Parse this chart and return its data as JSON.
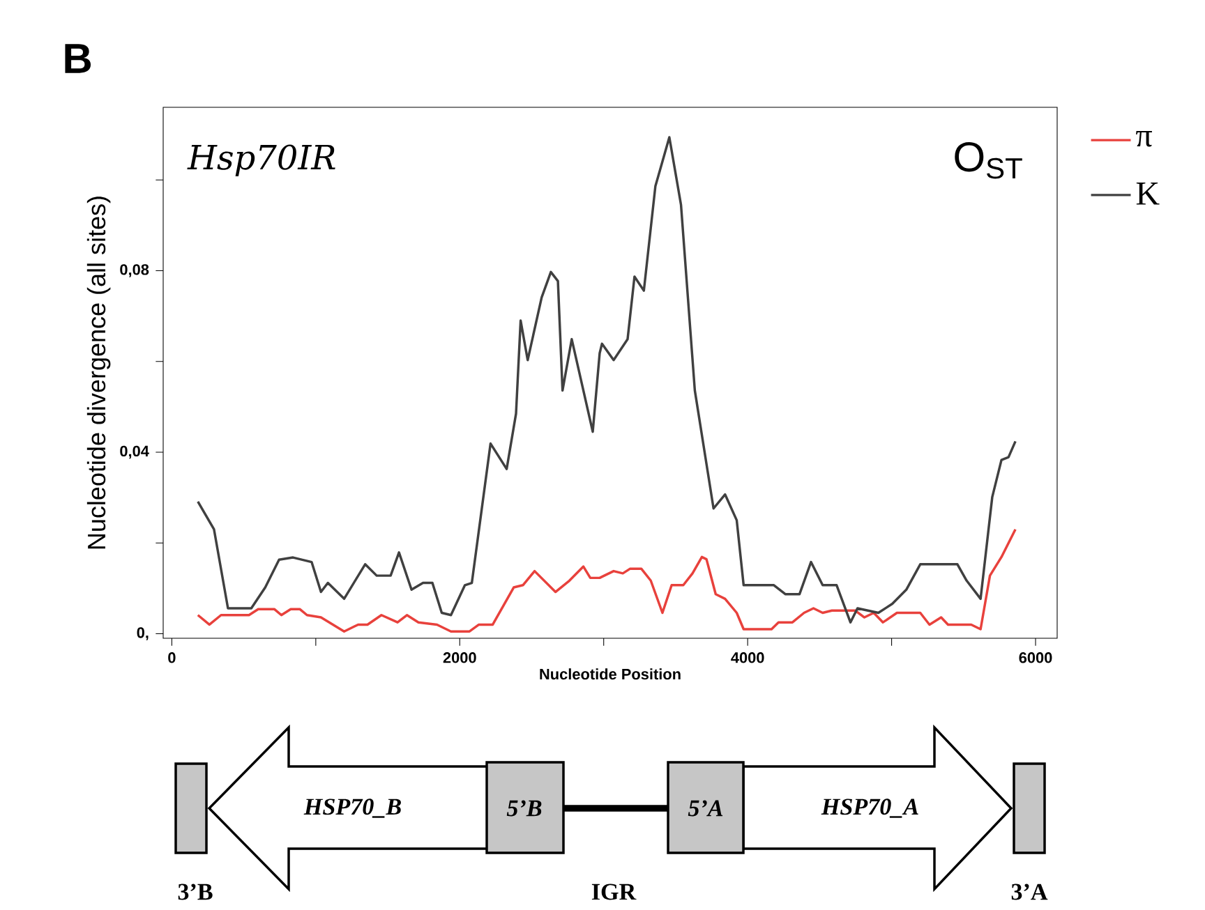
{
  "chart_data": {
    "type": "line",
    "title": "B",
    "xlabel": "Nucleotide Position",
    "ylabel": "Nucleotide divergence (all sites)",
    "xlim": [
      -60,
      6150
    ],
    "ylim": [
      -0.001,
      0.116
    ],
    "xticks": [
      0,
      {
        "value": 1000,
        "label": null
      },
      2000,
      {
        "value": 3000,
        "label": null
      },
      4000,
      {
        "value": 5000,
        "label": null
      },
      6000
    ],
    "yticks": [
      {
        "value": 0,
        "label": "0,"
      },
      {
        "value": 0.02,
        "label": null
      },
      {
        "value": 0.04,
        "label": "0,04"
      },
      {
        "value": 0.06,
        "label": null
      },
      {
        "value": 0.08,
        "label": "0,08"
      },
      {
        "value": 0.1,
        "label": null
      }
    ],
    "grid": false,
    "legend": "right",
    "marker": "none",
    "line_style": "solid",
    "annotations": [
      "Hsp70IR",
      "O$_{ST}$",
      "HSP70_B",
      "5’B",
      "5’A",
      "HSP70_A",
      "3’B",
      "IGR",
      "3’A"
    ],
    "series": [
      {
        "name": "π",
        "color": "#e8413c",
        "x": [
          181,
          261,
          342,
          536,
          600,
          713,
          761,
          826,
          890,
          939,
          1036,
          1197,
          1294,
          1359,
          1456,
          1568,
          1633,
          1713,
          1842,
          1939,
          2068,
          2133,
          2229,
          2375,
          2439,
          2520,
          2665,
          2762,
          2859,
          2907,
          2972,
          3004,
          3069,
          3133,
          3182,
          3262,
          3327,
          3408,
          3472,
          3553,
          3617,
          3682,
          3714,
          3778,
          3843,
          3924,
          3972,
          4166,
          4214,
          4311,
          4392,
          4457,
          4521,
          4585,
          4747,
          4811,
          4876,
          4940,
          5037,
          5199,
          5263,
          5344,
          5392,
          5553,
          5618,
          5683,
          5763,
          5860
        ],
        "values": [
          0.0041,
          0.002,
          0.0041,
          0.0041,
          0.0054,
          0.0054,
          0.0041,
          0.0054,
          0.0054,
          0.0041,
          0.0036,
          0.0005,
          0.002,
          0.002,
          0.0041,
          0.0025,
          0.0041,
          0.0025,
          0.002,
          0.0005,
          0.0005,
          0.002,
          0.002,
          0.0102,
          0.0107,
          0.0138,
          0.0092,
          0.0117,
          0.0148,
          0.0123,
          0.0123,
          0.0128,
          0.0138,
          0.0133,
          0.0143,
          0.0143,
          0.0117,
          0.0046,
          0.0107,
          0.0107,
          0.0133,
          0.0169,
          0.0164,
          0.0087,
          0.0077,
          0.0046,
          0.001,
          0.001,
          0.0025,
          0.0025,
          0.0046,
          0.0056,
          0.0046,
          0.0051,
          0.0051,
          0.0036,
          0.0046,
          0.0025,
          0.0046,
          0.0046,
          0.002,
          0.0036,
          0.002,
          0.002,
          0.001,
          0.0128,
          0.0169,
          0.023
        ]
      },
      {
        "name": "K",
        "color": "#404040",
        "x": [
          181,
          293,
          390,
          552,
          649,
          745,
          842,
          971,
          1036,
          1084,
          1197,
          1343,
          1423,
          1520,
          1578,
          1665,
          1745,
          1810,
          1875,
          1939,
          2036,
          2084,
          2214,
          2326,
          2391,
          2423,
          2472,
          2569,
          2633,
          2682,
          2714,
          2778,
          2924,
          2972,
          2988,
          3069,
          3166,
          3214,
          3279,
          3359,
          3456,
          3537,
          3633,
          3763,
          3843,
          3924,
          3972,
          4182,
          4263,
          4360,
          4440,
          4521,
          4618,
          4714,
          4763,
          4908,
          5005,
          5102,
          5199,
          5457,
          5521,
          5618,
          5699,
          5763,
          5812,
          5860
        ],
        "values": [
          0.0291,
          0.023,
          0.0056,
          0.0056,
          0.0102,
          0.0163,
          0.0168,
          0.0158,
          0.0092,
          0.0112,
          0.0077,
          0.0153,
          0.0128,
          0.0128,
          0.0179,
          0.0097,
          0.0112,
          0.0112,
          0.0046,
          0.0041,
          0.0107,
          0.0112,
          0.0419,
          0.0363,
          0.0485,
          0.069,
          0.0603,
          0.0741,
          0.0797,
          0.0777,
          0.0536,
          0.0649,
          0.0445,
          0.0618,
          0.0639,
          0.0603,
          0.0649,
          0.0787,
          0.0756,
          0.0986,
          0.1094,
          0.0945,
          0.0536,
          0.0276,
          0.0307,
          0.025,
          0.0107,
          0.0107,
          0.0087,
          0.0087,
          0.0158,
          0.0107,
          0.0107,
          0.0025,
          0.0056,
          0.0046,
          0.0066,
          0.0097,
          0.0153,
          0.0153,
          0.0117,
          0.0077,
          0.0301,
          0.0383,
          0.0389,
          0.0424
        ]
      }
    ]
  }
}
